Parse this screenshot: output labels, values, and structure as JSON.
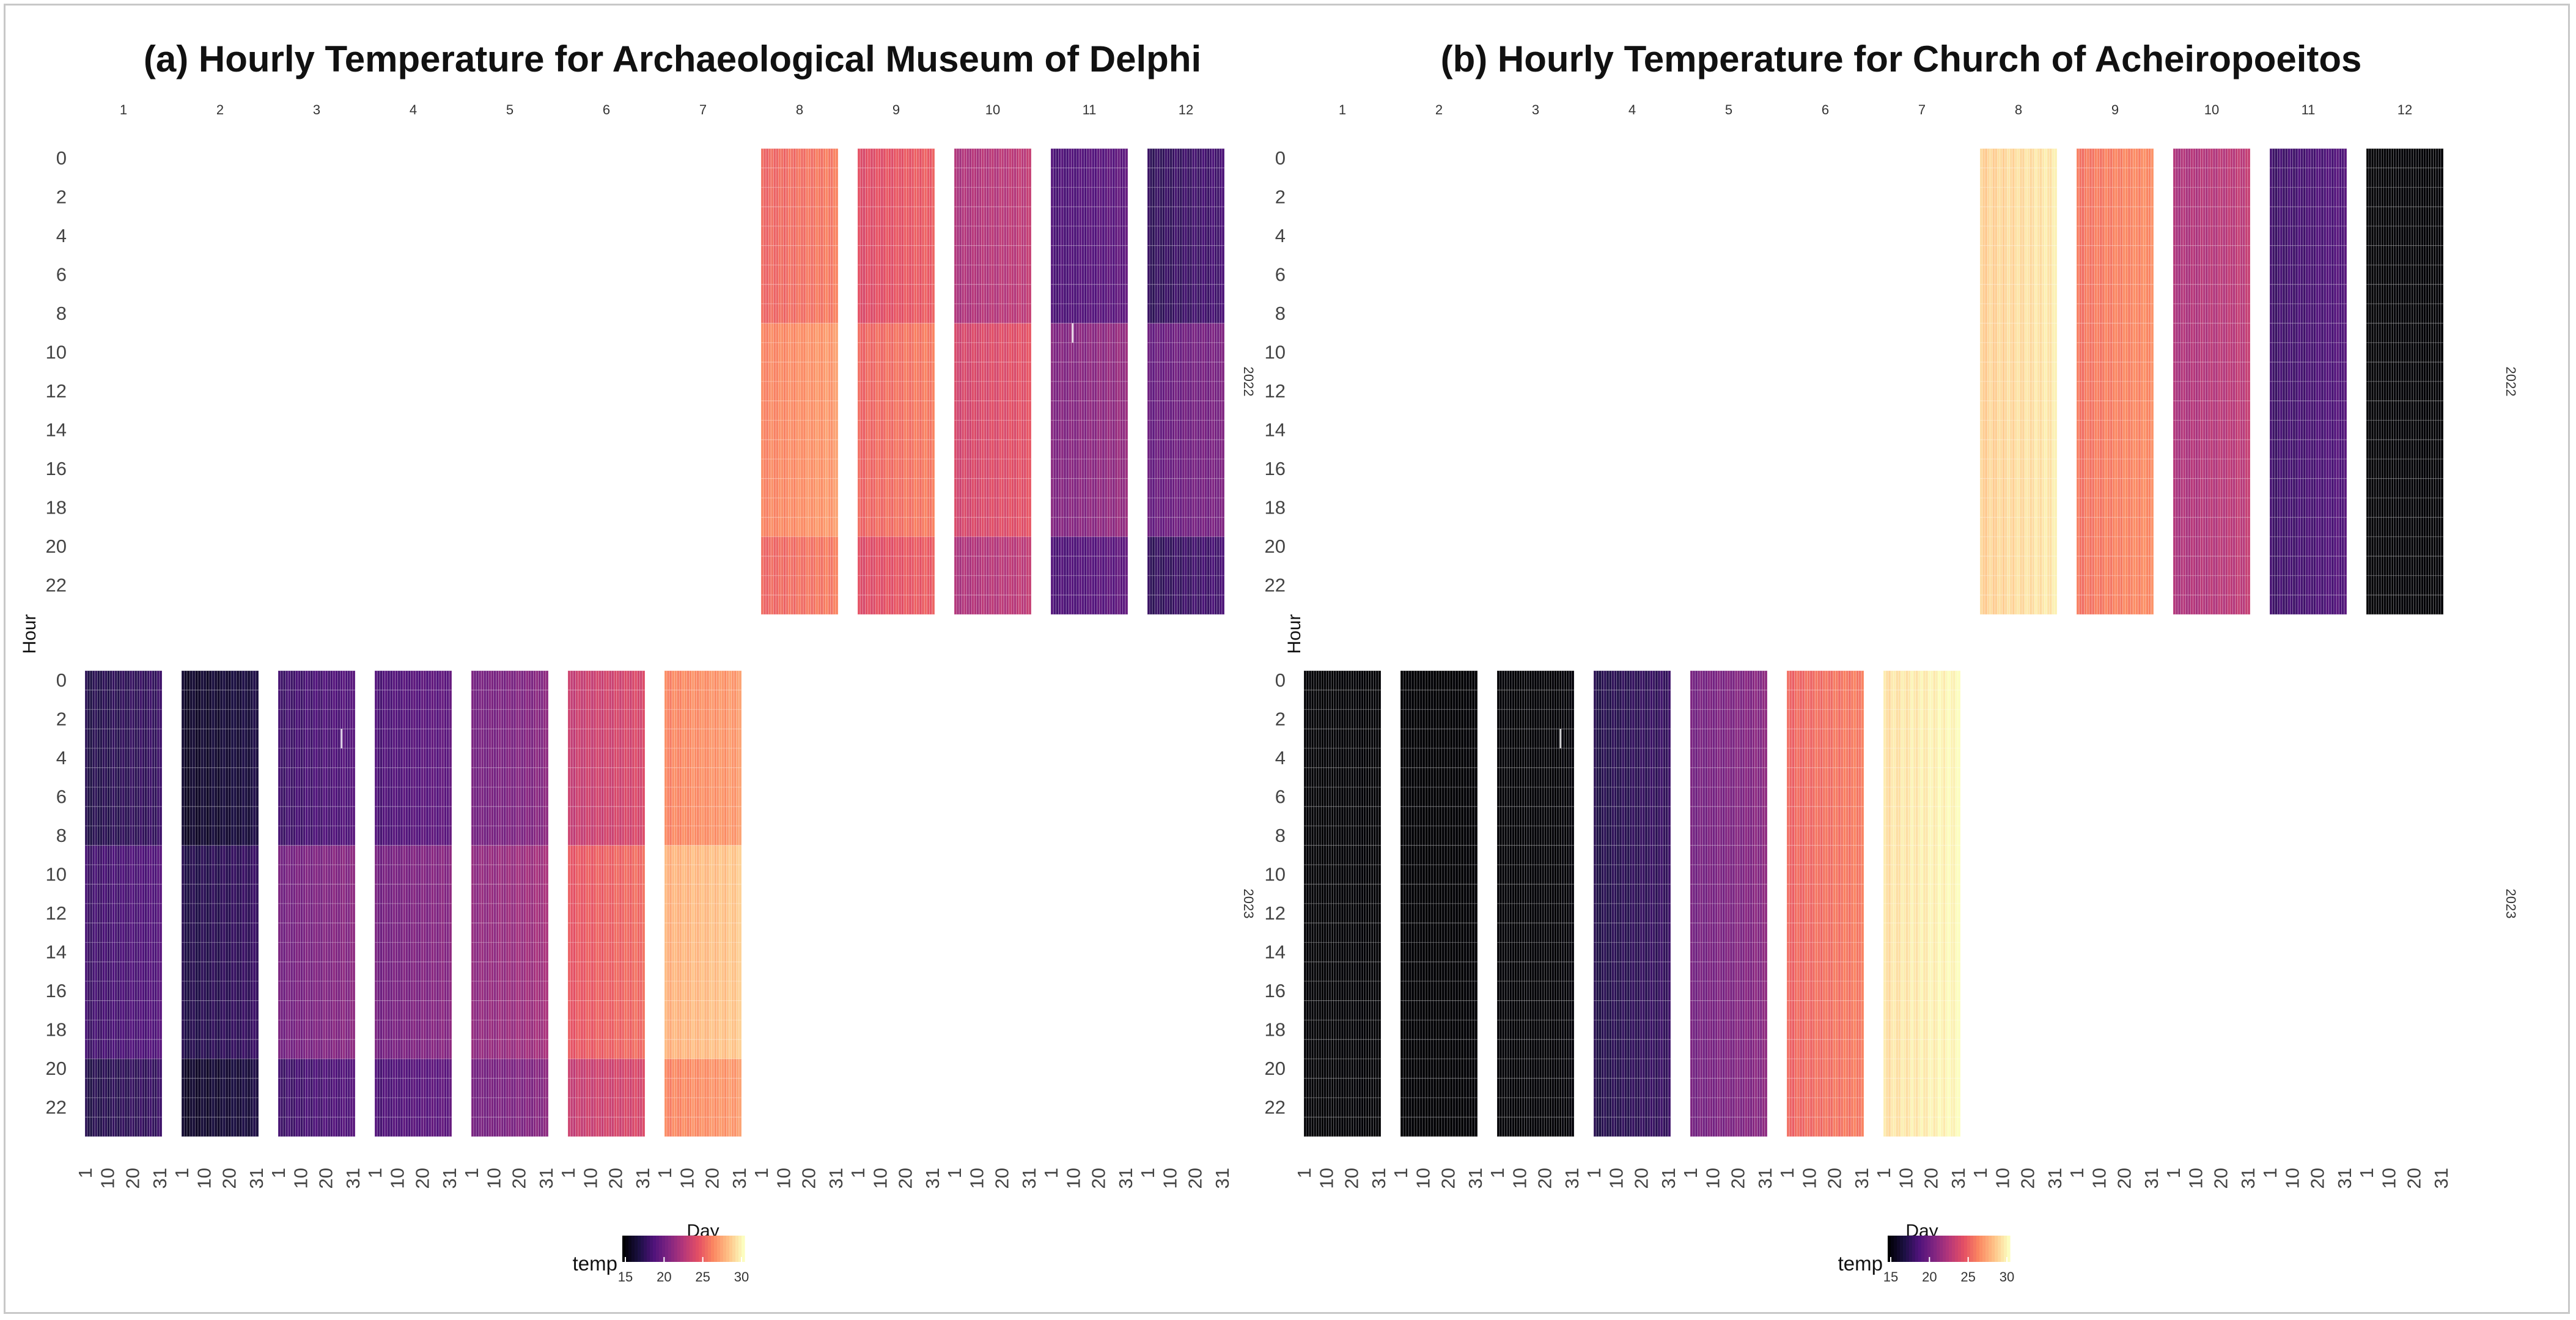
{
  "figure": {
    "frame": "bordered"
  },
  "chart_data": [
    {
      "type": "heatmap",
      "title": "(a) Hourly Temperature for Archaeological Museum of Delphi",
      "xlabel": "Day",
      "ylabel": "Hour",
      "month_labels": [
        "1",
        "2",
        "3",
        "4",
        "5",
        "6",
        "7",
        "8",
        "9",
        "10",
        "11",
        "12"
      ],
      "day_tick_labels": [
        "1",
        "10",
        "20",
        "31"
      ],
      "hour_tick_labels": [
        "0",
        "2",
        "4",
        "6",
        "8",
        "10",
        "12",
        "14",
        "16",
        "18",
        "20",
        "22"
      ],
      "year_rows": [
        "2022",
        "2023"
      ],
      "legend": {
        "title": "temp",
        "min": 15,
        "max": 30,
        "ticks": [
          "15",
          "20",
          "25",
          "30"
        ],
        "colormap": "magma"
      },
      "months": [
        {
          "year": "2022",
          "month": 8,
          "night": 25.5,
          "day": 26.5,
          "days": 31,
          "missing": []
        },
        {
          "year": "2022",
          "month": 9,
          "night": 24.5,
          "day": 25.5,
          "days": 30,
          "missing": []
        },
        {
          "year": "2022",
          "month": 10,
          "night": 22.5,
          "day": 24.0,
          "days": 31,
          "missing": []
        },
        {
          "year": "2022",
          "month": 11,
          "night": 19.0,
          "day": 21.0,
          "days": 30,
          "missing": [
            {
              "day": 9,
              "hour": 9
            }
          ]
        },
        {
          "year": "2022",
          "month": 12,
          "night": 18.0,
          "day": 20.0,
          "days": 31,
          "missing": []
        },
        {
          "year": "2023",
          "month": 1,
          "night": 17.5,
          "day": 18.5,
          "days": 31,
          "missing": []
        },
        {
          "year": "2023",
          "month": 2,
          "night": 16.5,
          "day": 17.5,
          "days": 28,
          "missing": []
        },
        {
          "year": "2023",
          "month": 3,
          "night": 18.5,
          "day": 20.5,
          "days": 31,
          "missing": [
            {
              "day": 26,
              "hour": 3
            }
          ]
        },
        {
          "year": "2023",
          "month": 4,
          "night": 19.0,
          "day": 20.5,
          "days": 30,
          "missing": []
        },
        {
          "year": "2023",
          "month": 5,
          "night": 20.5,
          "day": 21.5,
          "days": 31,
          "missing": []
        },
        {
          "year": "2023",
          "month": 6,
          "night": 23.5,
          "day": 25.0,
          "days": 30,
          "missing": []
        },
        {
          "year": "2023",
          "month": 7,
          "night": 26.5,
          "day": 28.0,
          "days": 31,
          "missing": []
        }
      ]
    },
    {
      "type": "heatmap",
      "title": "(b) Hourly Temperature for Church of Acheiropoeitos",
      "xlabel": "Day",
      "ylabel": "Hour",
      "month_labels": [
        "1",
        "2",
        "3",
        "4",
        "5",
        "6",
        "7",
        "8",
        "9",
        "10",
        "11",
        "12"
      ],
      "day_tick_labels": [
        "1",
        "10",
        "20",
        "31"
      ],
      "hour_tick_labels": [
        "0",
        "2",
        "4",
        "6",
        "8",
        "10",
        "12",
        "14",
        "16",
        "18",
        "20",
        "22"
      ],
      "year_rows": [
        "2022",
        "2023"
      ],
      "legend": {
        "title": "temp",
        "min": 15,
        "max": 30,
        "ticks": [
          "15",
          "20",
          "25",
          "30"
        ],
        "colormap": "magma"
      },
      "months": [
        {
          "year": "2022",
          "month": 8,
          "night": 29.0,
          "day": 29.0,
          "days": 31,
          "missing": []
        },
        {
          "year": "2022",
          "month": 9,
          "night": 26.0,
          "day": 26.0,
          "days": 30,
          "missing": []
        },
        {
          "year": "2022",
          "month": 10,
          "night": 22.5,
          "day": 22.5,
          "days": 31,
          "missing": []
        },
        {
          "year": "2022",
          "month": 11,
          "night": 18.5,
          "day": 18.5,
          "days": 30,
          "missing": []
        },
        {
          "year": "2022",
          "month": 12,
          "night": 14.0,
          "day": 14.0,
          "days": 31,
          "missing": []
        },
        {
          "year": "2023",
          "month": 1,
          "night": 14.0,
          "day": 14.0,
          "days": 31,
          "missing": []
        },
        {
          "year": "2023",
          "month": 2,
          "night": 14.0,
          "day": 14.0,
          "days": 28,
          "missing": []
        },
        {
          "year": "2023",
          "month": 3,
          "night": 14.5,
          "day": 14.5,
          "days": 31,
          "missing": [
            {
              "day": 26,
              "hour": 3
            }
          ]
        },
        {
          "year": "2023",
          "month": 4,
          "night": 17.5,
          "day": 17.5,
          "days": 30,
          "missing": []
        },
        {
          "year": "2023",
          "month": 5,
          "night": 20.5,
          "day": 20.5,
          "days": 31,
          "missing": []
        },
        {
          "year": "2023",
          "month": 6,
          "night": 25.5,
          "day": 25.5,
          "days": 30,
          "missing": []
        },
        {
          "year": "2023",
          "month": 7,
          "night": 29.5,
          "day": 29.5,
          "days": 31,
          "missing": []
        }
      ]
    }
  ]
}
